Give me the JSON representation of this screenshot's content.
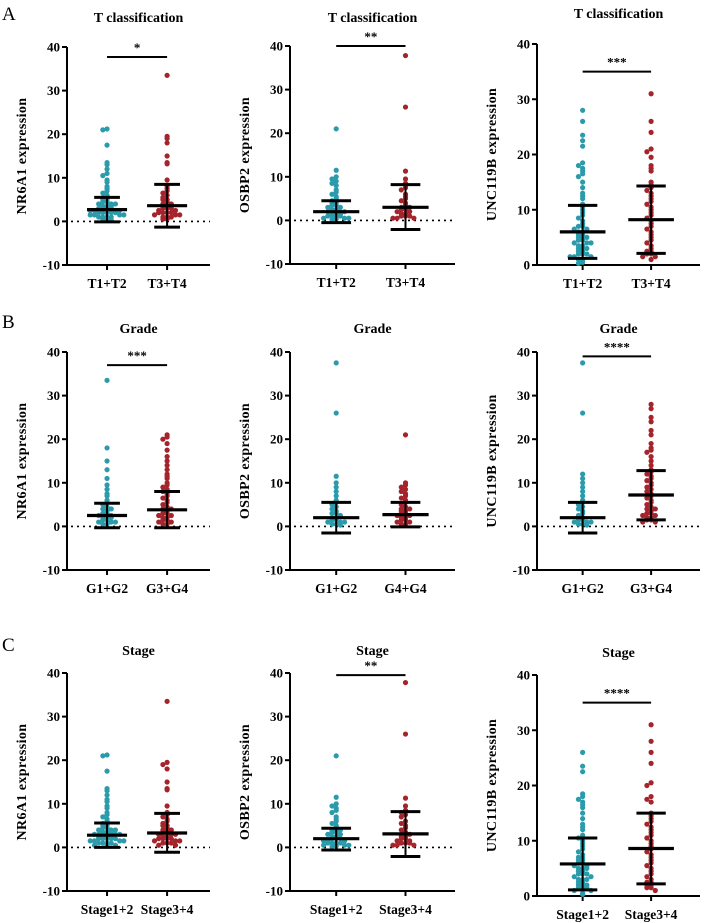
{
  "colors": {
    "group1": "#2b9bab",
    "group2": "#a5242c",
    "axis": "#000000"
  },
  "chart_data": [
    {
      "panel_letter": "A",
      "type": "scatter",
      "title": "T classification",
      "ylabel": "NR6A1 expression",
      "ylim": [
        -10,
        40
      ],
      "yticks": [
        "-10",
        "0",
        "10",
        "20",
        "30",
        "40"
      ],
      "zero_line": true,
      "significance": "*",
      "sig_bar_y": 37.7,
      "categories": [
        "T1+T2",
        "T3+T4"
      ],
      "groups": [
        {
          "mean": 2.7,
          "sd_high": 5.5,
          "sd_low": -0.1,
          "points": [
            21.2,
            21,
            17.5,
            13.5,
            13,
            12,
            11,
            10.5,
            9.5,
            9,
            8,
            7.5,
            7,
            6.5,
            6,
            5.5,
            5,
            5,
            4.5,
            4.5,
            4,
            4,
            4,
            3.5,
            3.5,
            3.5,
            3,
            3,
            3,
            3,
            2.5,
            2.5,
            2.5,
            2.5,
            2,
            2,
            2,
            2,
            2,
            1.5,
            1.5,
            1.5,
            1.5,
            1,
            1,
            1,
            1,
            0.5,
            0.5,
            0.3
          ]
        },
        {
          "mean": 3.6,
          "sd_high": 8.5,
          "sd_low": -1.3,
          "points": [
            33.5,
            19.5,
            19,
            18,
            15,
            13.5,
            13.2,
            9.5,
            8,
            7.5,
            7,
            6.5,
            6,
            5.5,
            5,
            5,
            4.5,
            4,
            4,
            3.5,
            3.5,
            3,
            3,
            3,
            2.5,
            2.5,
            2,
            2,
            2,
            2,
            1.5,
            1.5,
            1.5,
            1,
            1,
            1,
            0.5,
            0.5
          ]
        }
      ]
    },
    {
      "panel_letter": "",
      "type": "scatter",
      "title": "T classification",
      "ylabel": "OSBP2 expression",
      "ylim": [
        -10,
        40
      ],
      "yticks": [
        "-10",
        "0",
        "10",
        "20",
        "30",
        "40"
      ],
      "zero_line": true,
      "significance": "**",
      "sig_bar_y": 40,
      "categories": [
        "T1+T2",
        "T3+T4"
      ],
      "groups": [
        {
          "mean": 2.0,
          "sd_high": 4.5,
          "sd_low": -0.5,
          "points": [
            21,
            11.5,
            10,
            9.5,
            9,
            8.5,
            8,
            7,
            6.5,
            6,
            5.5,
            5,
            4.5,
            4,
            4,
            3.5,
            3.5,
            3,
            3,
            2.5,
            2.5,
            2,
            2,
            2,
            1.5,
            1.5,
            1.5,
            1,
            1,
            1,
            1,
            0.5,
            0.5,
            0.5,
            0.3,
            0.2
          ]
        },
        {
          "mean": 3.0,
          "sd_high": 8.2,
          "sd_low": -2.1,
          "points": [
            37.8,
            26,
            11.3,
            9.5,
            8.5,
            8,
            7.5,
            7,
            6,
            5.5,
            5,
            4.5,
            4,
            3.5,
            3,
            3,
            2.5,
            2.5,
            2,
            2,
            1.5,
            1.5,
            1,
            1,
            1,
            0.5,
            0.5,
            0.5
          ]
        }
      ]
    },
    {
      "panel_letter": "",
      "type": "scatter",
      "title": "T classification",
      "ylabel": "UNC119B expression",
      "ylim": [
        0,
        40
      ],
      "yticks": [
        "0",
        "10",
        "20",
        "30",
        "40"
      ],
      "zero_line": false,
      "significance": "***",
      "sig_bar_y": 35,
      "categories": [
        "T1+T2",
        "T3+T4"
      ],
      "groups": [
        {
          "mean": 6.0,
          "sd_high": 10.8,
          "sd_low": 1.2,
          "points": [
            28,
            26,
            23.5,
            22.5,
            21.5,
            18.5,
            18,
            17.5,
            17,
            16.5,
            16,
            15,
            14,
            13,
            12.5,
            12,
            11,
            10.5,
            10,
            9.5,
            9,
            8.5,
            8,
            7.5,
            7,
            7,
            6.5,
            6.5,
            6,
            6,
            5.5,
            5.5,
            5,
            5,
            5,
            4.5,
            4.5,
            4,
            4,
            4,
            3.5,
            3.5,
            3,
            3,
            3,
            2.5,
            2.5,
            2,
            2,
            2,
            1.5,
            1.5,
            1.5,
            1,
            1,
            0.5,
            0.3
          ]
        },
        {
          "mean": 8.2,
          "sd_high": 14.3,
          "sd_low": 2.1,
          "points": [
            31,
            26,
            24,
            21,
            20.5,
            19.5,
            18,
            17.5,
            17,
            15,
            14.5,
            14,
            13.5,
            13,
            12.5,
            12,
            11.5,
            11,
            10.5,
            10,
            9.5,
            9,
            8.5,
            8,
            7.5,
            7,
            6.5,
            6,
            5.5,
            5,
            4.5,
            4,
            3.5,
            3,
            2.5,
            2.5,
            2,
            2,
            1.5,
            1.5,
            1
          ]
        }
      ]
    },
    {
      "panel_letter": "B",
      "type": "scatter",
      "title": "Grade",
      "ylabel": "NR6A1 expression",
      "ylim": [
        -10,
        40
      ],
      "yticks": [
        "-10",
        "0",
        "10",
        "20",
        "30",
        "40"
      ],
      "zero_line": true,
      "significance": "***",
      "sig_bar_y": 37,
      "categories": [
        "G1+G2",
        "G3+G4"
      ],
      "groups": [
        {
          "mean": 2.5,
          "sd_high": 5.3,
          "sd_low": -0.3,
          "points": [
            33.5,
            18,
            15,
            13,
            11,
            9.5,
            8.5,
            7.5,
            7,
            6,
            5.5,
            5,
            4.5,
            4,
            4,
            3.5,
            3,
            3,
            2.5,
            2.5,
            2,
            2,
            2,
            1.5,
            1.5,
            1,
            1,
            1,
            0.5,
            0.5
          ]
        },
        {
          "mean": 3.8,
          "sd_high": 8.0,
          "sd_low": -0.3,
          "points": [
            21,
            20.5,
            20,
            19,
            17.5,
            16,
            15,
            14,
            13,
            12,
            11.5,
            11,
            10,
            9.5,
            9,
            8.5,
            8,
            7.5,
            7,
            6.5,
            6,
            5.5,
            5,
            4.5,
            4,
            4,
            3.5,
            3,
            3,
            2.5,
            2.5,
            2,
            2,
            1.5,
            1.5,
            1,
            1,
            0.5,
            0.5
          ]
        }
      ]
    },
    {
      "panel_letter": "",
      "type": "scatter",
      "title": "Grade",
      "ylabel": "OSBP2 expression",
      "ylim": [
        -10,
        40
      ],
      "yticks": [
        "-10",
        "0",
        "10",
        "20",
        "30",
        "40"
      ],
      "zero_line": true,
      "significance": "",
      "sig_bar_y": null,
      "categories": [
        "G1+G2",
        "G4+G4"
      ],
      "groups": [
        {
          "mean": 2.0,
          "sd_high": 5.5,
          "sd_low": -1.5,
          "points": [
            37.5,
            26,
            11.5,
            10,
            9,
            8,
            7,
            6,
            5.5,
            5,
            4.5,
            4,
            3.5,
            3,
            3,
            2.5,
            2,
            2,
            1.5,
            1.5,
            1,
            1,
            1,
            0.5,
            0.5,
            0.3
          ]
        },
        {
          "mean": 2.7,
          "sd_high": 5.5,
          "sd_low": -0.1,
          "points": [
            21,
            10,
            9.5,
            9,
            8.5,
            8,
            7.5,
            7,
            6.5,
            6,
            5.5,
            5,
            4.5,
            4,
            4,
            3.5,
            3.5,
            3,
            3,
            2.5,
            2.5,
            2,
            2,
            1.5,
            1.5,
            1,
            1,
            0.5,
            0.5
          ]
        }
      ]
    },
    {
      "panel_letter": "",
      "type": "scatter",
      "title": "Grade",
      "ylabel": "UNC119B expression",
      "ylim": [
        -10,
        40
      ],
      "yticks": [
        "-10",
        "0",
        "10",
        "20",
        "30",
        "40"
      ],
      "zero_line": true,
      "significance": "****",
      "sig_bar_y": 39,
      "categories": [
        "G1+G2",
        "G3+G4"
      ],
      "groups": [
        {
          "mean": 2.0,
          "sd_high": 5.5,
          "sd_low": -1.5,
          "points": [
            37.5,
            26,
            12,
            11,
            10,
            9,
            8,
            7,
            6,
            5.5,
            5,
            4.5,
            4,
            3.5,
            3,
            2.5,
            2,
            2,
            1.5,
            1.5,
            1,
            1,
            1,
            0.5,
            0.5,
            0.3
          ]
        },
        {
          "mean": 7.2,
          "sd_high": 12.8,
          "sd_low": 1.5,
          "points": [
            28,
            27,
            25,
            24,
            22,
            21,
            19,
            18,
            17.5,
            17,
            16,
            15,
            14,
            13,
            12.5,
            12,
            11.5,
            11,
            10.5,
            10,
            9.5,
            9,
            8.5,
            8,
            7.5,
            7,
            6.5,
            6,
            5.5,
            5,
            4.5,
            4,
            4,
            3.5,
            3,
            3,
            2.5,
            2.5,
            2,
            2,
            1.5,
            1.5,
            1,
            1
          ]
        }
      ]
    },
    {
      "panel_letter": "C",
      "type": "scatter",
      "title": "Stage",
      "ylabel": "NR6A1 expression",
      "ylim": [
        -10,
        40
      ],
      "yticks": [
        "-10",
        "0",
        "10",
        "20",
        "30",
        "40"
      ],
      "zero_line": true,
      "significance": "",
      "sig_bar_y": null,
      "categories": [
        "Stage1+2",
        "Stage3+4"
      ],
      "groups": [
        {
          "mean": 2.8,
          "sd_high": 5.6,
          "sd_low": 0,
          "points": [
            21.2,
            21,
            17.5,
            13.5,
            13,
            12,
            11,
            10.5,
            9.5,
            9,
            8,
            7.5,
            7,
            6.5,
            6,
            5.5,
            5,
            5,
            4.5,
            4.5,
            4,
            4,
            4,
            3.5,
            3.5,
            3.5,
            3,
            3,
            3,
            3,
            2.5,
            2.5,
            2.5,
            2.5,
            2,
            2,
            2,
            2,
            2,
            1.5,
            1.5,
            1.5,
            1.5,
            1,
            1,
            1,
            1,
            0.5,
            0.5,
            0.3
          ]
        },
        {
          "mean": 3.3,
          "sd_high": 7.8,
          "sd_low": -1.1,
          "points": [
            33.5,
            19.5,
            19,
            18,
            15,
            13.5,
            13.2,
            9.5,
            8,
            7.5,
            7,
            6.5,
            6,
            5.5,
            5,
            5,
            4.5,
            4,
            4,
            3.5,
            3.5,
            3,
            3,
            3,
            2.5,
            2.5,
            2,
            2,
            2,
            2,
            1.5,
            1.5,
            1.5,
            1,
            1,
            1,
            0.5,
            0.5
          ]
        }
      ]
    },
    {
      "panel_letter": "",
      "type": "scatter",
      "title": "Stage",
      "ylabel": "OSBP2 expression",
      "ylim": [
        -10,
        40
      ],
      "yticks": [
        "-10",
        "0",
        "10",
        "20",
        "30",
        "40"
      ],
      "zero_line": true,
      "significance": "**",
      "sig_bar_y": 39.5,
      "categories": [
        "Stage1+2",
        "Stage3+4"
      ],
      "groups": [
        {
          "mean": 2.0,
          "sd_high": 4.4,
          "sd_low": -0.6,
          "points": [
            21,
            11.5,
            10,
            9.5,
            9,
            8.5,
            8,
            7,
            6.5,
            6,
            5.5,
            5,
            4.5,
            4,
            4,
            3.5,
            3.5,
            3,
            3,
            2.5,
            2.5,
            2,
            2,
            2,
            1.5,
            1.5,
            1.5,
            1,
            1,
            1,
            1,
            0.5,
            0.5,
            0.5,
            0.3,
            0.2
          ]
        },
        {
          "mean": 3.1,
          "sd_high": 8.2,
          "sd_low": -2.1,
          "points": [
            37.8,
            26,
            11.3,
            9.5,
            8.5,
            8,
            7.5,
            7,
            6,
            5.5,
            5,
            4.5,
            4,
            3.5,
            3,
            3,
            2.5,
            2.5,
            2,
            2,
            1.5,
            1.5,
            1,
            1,
            1,
            0.5,
            0.5,
            0.5
          ]
        }
      ]
    },
    {
      "panel_letter": "",
      "type": "scatter",
      "title": "Stage",
      "ylabel": "UNC119B expression",
      "ylim": [
        0,
        40
      ],
      "yticks": [
        "0",
        "10",
        "20",
        "30",
        "40"
      ],
      "zero_line": false,
      "significance": "****",
      "sig_bar_y": 35,
      "categories": [
        "Stage1+2",
        "Stage3+4"
      ],
      "groups": [
        {
          "mean": 5.8,
          "sd_high": 10.5,
          "sd_low": 1.1,
          "points": [
            26,
            23.5,
            22.5,
            18.5,
            18,
            17.5,
            17,
            16.5,
            16,
            15,
            14,
            13,
            12.5,
            12,
            11,
            10.5,
            10,
            9.5,
            9,
            8.5,
            8,
            7.5,
            7,
            7,
            6.5,
            6.5,
            6,
            6,
            5.5,
            5.5,
            5,
            5,
            5,
            4.5,
            4.5,
            4,
            4,
            4,
            3.5,
            3.5,
            3,
            3,
            3,
            2.5,
            2.5,
            2,
            2,
            2,
            1.5,
            1.5,
            1.5,
            1,
            1,
            0.5,
            0.3
          ]
        },
        {
          "mean": 8.6,
          "sd_high": 15.0,
          "sd_low": 2.2,
          "points": [
            31,
            28,
            26,
            24,
            20.5,
            20,
            18,
            17.5,
            17,
            15,
            14.5,
            14,
            13.5,
            13,
            12.5,
            12,
            11.5,
            11,
            10.5,
            10,
            9.5,
            9,
            8.5,
            8,
            7.5,
            7,
            6.5,
            6,
            5.5,
            5,
            4.5,
            4,
            3.5,
            3,
            2.5,
            2.5,
            2,
            2,
            1.5,
            1.5,
            1
          ]
        }
      ]
    }
  ]
}
